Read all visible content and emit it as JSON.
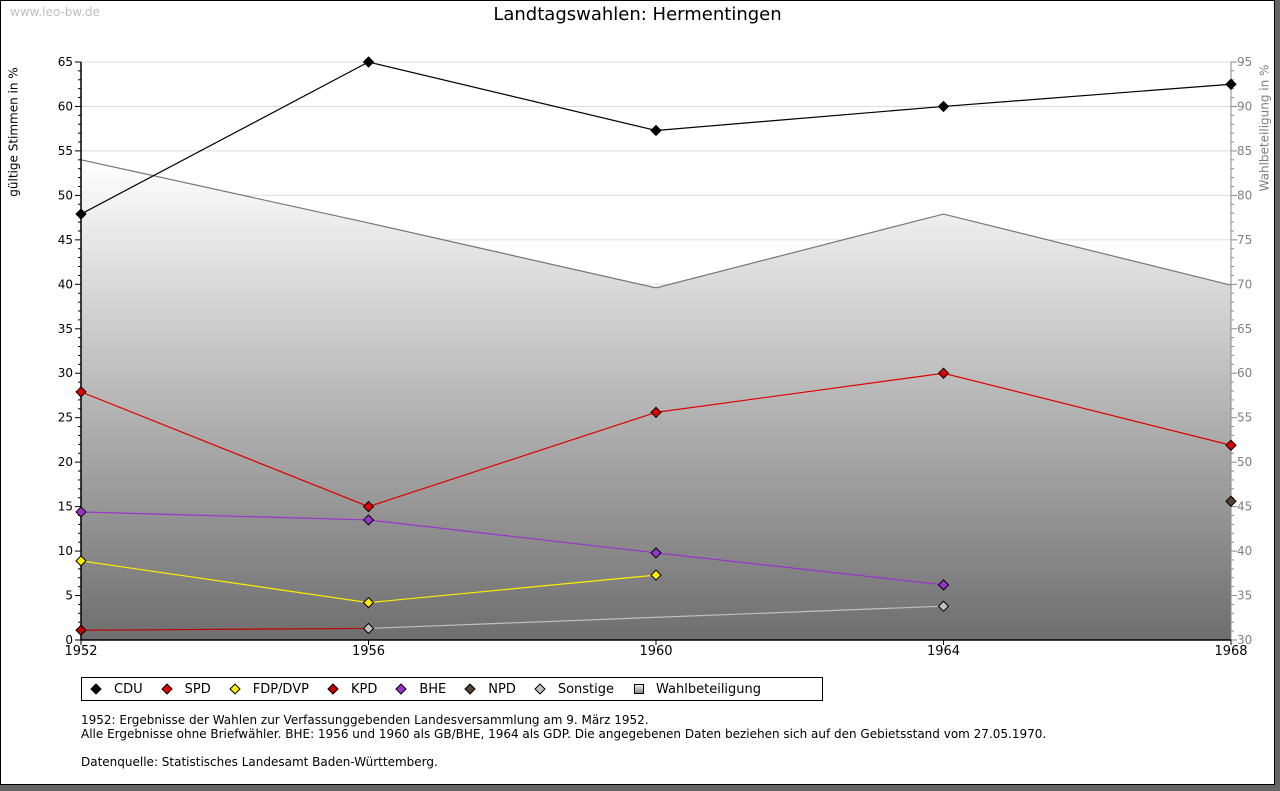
{
  "watermark": "www.leo-bw.de",
  "chart_data": {
    "type": "line",
    "title": "Landtagswahlen: Hermentingen",
    "xlabel": "",
    "ylabel": "gültige Stimmen in %",
    "ylabel_right": "Wahlbeteiligung in %",
    "x": [
      1952,
      1956,
      1960,
      1964,
      1968
    ],
    "x_tick_labels": [
      "1952",
      "1956",
      "1960",
      "1964",
      "1968"
    ],
    "ylim": [
      0,
      65
    ],
    "y_ticks": [
      "0",
      "5",
      "10",
      "15",
      "20",
      "25",
      "30",
      "35",
      "40",
      "45",
      "50",
      "55",
      "60",
      "65"
    ],
    "ylim_right": [
      30,
      95
    ],
    "y_ticks_right": [
      "30",
      "35",
      "40",
      "45",
      "50",
      "55",
      "60",
      "65",
      "70",
      "75",
      "80",
      "85",
      "90",
      "95"
    ],
    "grid": true,
    "legend_position": "bottom",
    "series": [
      {
        "name": "CDU",
        "color": "#000000",
        "values": [
          47.9,
          65.0,
          57.3,
          60.0,
          62.5
        ]
      },
      {
        "name": "SPD",
        "color": "#e00000",
        "values": [
          27.9,
          15.0,
          25.6,
          30.0,
          21.9
        ]
      },
      {
        "name": "FDP/DVP",
        "color": "#ffee00",
        "values": [
          8.9,
          4.2,
          7.3,
          null,
          null
        ]
      },
      {
        "name": "KPD",
        "color": "#c00000",
        "values": [
          1.1,
          1.3,
          null,
          null,
          null
        ]
      },
      {
        "name": "BHE",
        "color": "#9933cc",
        "values": [
          14.4,
          13.5,
          9.8,
          6.2,
          null
        ]
      },
      {
        "name": "NPD",
        "color": "#5a4030",
        "values": [
          null,
          null,
          null,
          null,
          15.6
        ]
      },
      {
        "name": "Sonstige",
        "color": "#c0c0c0",
        "values": [
          null,
          1.3,
          null,
          3.8,
          null
        ]
      }
    ],
    "area_series": {
      "name": "Wahlbeteiligung",
      "axis": "right",
      "values": [
        84.0,
        76.9,
        69.6,
        77.9,
        69.9
      ]
    }
  },
  "notes": [
    "1952: Ergebnisse der Wahlen zur Verfassunggebenden Landesversammlung am 9. März 1952.",
    "Alle Ergebnisse ohne Briefwähler. BHE: 1956 und 1960 als GB/BHE, 1964 als GDP. Die angegebenen Daten beziehen sich auf den Gebietsstand vom 27.05.1970.",
    "",
    "Datenquelle: Statistisches Landesamt Baden-Württemberg."
  ]
}
